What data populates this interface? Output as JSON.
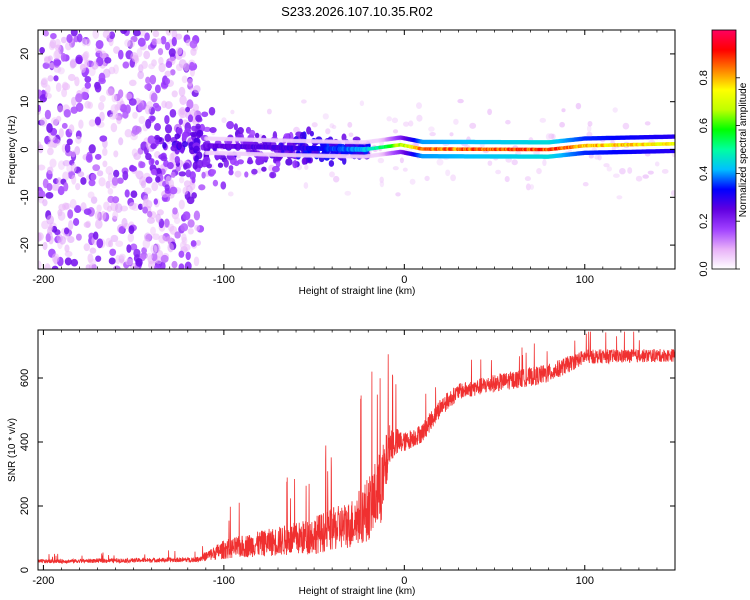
{
  "title": "S233.2026.107.10.35.R02",
  "chart_data": [
    {
      "type": "heatmap",
      "name": "spectrogram",
      "xlabel": "Height of straight line (km)",
      "ylabel": "Frequency (Hz)",
      "xlim": [
        -203,
        150
      ],
      "ylim": [
        -25,
        25
      ],
      "xticks": [
        -200,
        -100,
        0,
        100
      ],
      "yticks": [
        -20,
        -10,
        0,
        10,
        20
      ],
      "colorbar": {
        "label": "Normalized spectral amplitude",
        "range": [
          0,
          1
        ],
        "ticks": [
          "0.0",
          "0.2",
          "0.4",
          "0.6",
          "0.8"
        ],
        "tick_values": [
          0.0,
          0.2,
          0.4,
          0.6,
          0.8
        ],
        "stops": [
          "#ffffff",
          "#e8b0f8",
          "#a040ff",
          "#6000e0",
          "#0000ff",
          "#00c0ff",
          "#00ffa0",
          "#00ff00",
          "#c0ff00",
          "#ffff00",
          "#ff8000",
          "#ff0000",
          "#ff0060"
        ]
      },
      "carrier_line": [
        {
          "x": -110,
          "y": 0.8,
          "amp": 0.25
        },
        {
          "x": -60,
          "y": 0.3,
          "amp": 0.3
        },
        {
          "x": -22,
          "y": 0.0,
          "amp": 0.45
        },
        {
          "x": -2,
          "y": 1.0,
          "amp": 0.7
        },
        {
          "x": 10,
          "y": 0.1,
          "amp": 0.9
        },
        {
          "x": 80,
          "y": 0.0,
          "amp": 0.95
        },
        {
          "x": 100,
          "y": 0.8,
          "amp": 0.85
        },
        {
          "x": 150,
          "y": 1.2,
          "amp": 0.8
        }
      ]
    },
    {
      "type": "line",
      "name": "snr",
      "xlabel": "Height of straight line (km)",
      "ylabel": "SNR (10 * v/v)",
      "xlim": [
        -203,
        150
      ],
      "ylim": [
        0,
        750
      ],
      "xticks": [
        -200,
        -100,
        0,
        100
      ],
      "yticks": [
        0,
        200,
        400,
        600
      ],
      "color": "#f03030",
      "series_profile": [
        {
          "x": -203,
          "base": 25,
          "noise": 12
        },
        {
          "x": -115,
          "base": 30,
          "noise": 15
        },
        {
          "x": -100,
          "base": 55,
          "noise": 60
        },
        {
          "x": -80,
          "base": 70,
          "noise": 80
        },
        {
          "x": -55,
          "base": 85,
          "noise": 110
        },
        {
          "x": -30,
          "base": 120,
          "noise": 150
        },
        {
          "x": -20,
          "base": 160,
          "noise": 200
        },
        {
          "x": -12,
          "base": 230,
          "noise": 250
        },
        {
          "x": -8,
          "base": 380,
          "noise": 120
        },
        {
          "x": 0,
          "base": 390,
          "noise": 60
        },
        {
          "x": 10,
          "base": 420,
          "noise": 60
        },
        {
          "x": 20,
          "base": 500,
          "noise": 60
        },
        {
          "x": 30,
          "base": 550,
          "noise": 50
        },
        {
          "x": 50,
          "base": 575,
          "noise": 55
        },
        {
          "x": 80,
          "base": 605,
          "noise": 60
        },
        {
          "x": 100,
          "base": 660,
          "noise": 45
        },
        {
          "x": 150,
          "base": 665,
          "noise": 40
        }
      ]
    }
  ]
}
